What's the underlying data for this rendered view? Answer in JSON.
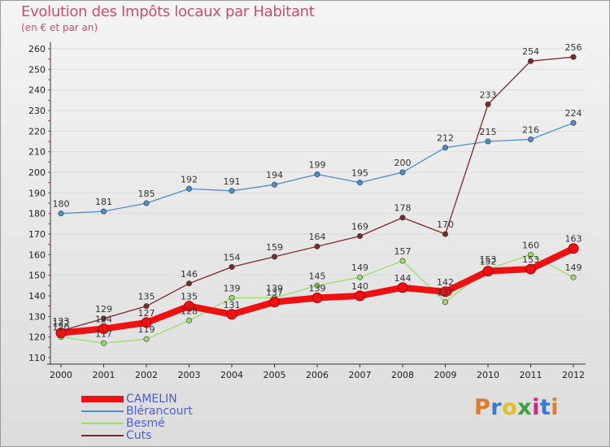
{
  "title": "Evolution des Impôts locaux par Habitant",
  "subtitle": "(en € et par an)",
  "logo": {
    "text": "Proxiti",
    "letter_colors": [
      "#e07a2a",
      "#3a7ad0",
      "#e0c020",
      "#3aa040",
      "#d02a7a",
      "#3a7ad0",
      "#e07a2a"
    ]
  },
  "colors": {
    "axis_ticks": "#cc3355",
    "grid": "#dddddd",
    "title": "#c8506e",
    "legend_text": "#4b5fd0"
  },
  "chart_data": {
    "type": "line",
    "title": "Evolution des Impôts locaux par Habitant",
    "subtitle": "(en € et par an)",
    "x": [
      "2000",
      "2001",
      "2002",
      "2003",
      "2004",
      "2005",
      "2006",
      "2007",
      "2008",
      "2009",
      "2010",
      "2011",
      "2012"
    ],
    "ylim": [
      110,
      260
    ],
    "yticks": [
      110,
      120,
      130,
      140,
      150,
      160,
      170,
      180,
      190,
      200,
      210,
      220,
      230,
      240,
      250,
      260
    ],
    "grid": "horizontal",
    "legend_position": "bottom-left",
    "series": [
      {
        "name": "CAMELIN",
        "color": "#ee1111",
        "values": [
          122,
          124,
          127,
          135,
          131,
          137,
          139,
          140,
          144,
          142,
          152,
          153,
          163
        ]
      },
      {
        "name": "Blérancourt",
        "color": "#4d8fcc",
        "values": [
          180,
          181,
          185,
          192,
          191,
          194,
          199,
          195,
          200,
          212,
          215,
          216,
          224
        ]
      },
      {
        "name": "Besmé",
        "color": "#99dd66",
        "values": [
          120,
          117,
          119,
          128,
          139,
          139,
          145,
          149,
          157,
          137,
          153,
          160,
          149
        ]
      },
      {
        "name": "Cuts",
        "color": "#7a2a2a",
        "values": [
          123,
          129,
          135,
          146,
          154,
          159,
          164,
          169,
          178,
          170,
          233,
          254,
          256
        ]
      }
    ]
  }
}
